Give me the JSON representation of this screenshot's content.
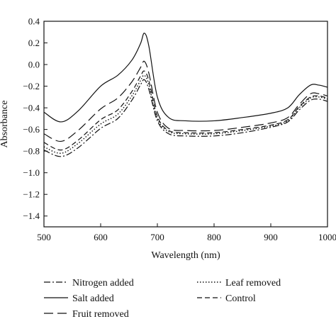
{
  "chart_data": {
    "type": "line",
    "xlabel": "Wavelength (nm)",
    "ylabel": "Absorbance",
    "xlim": [
      500,
      1000
    ],
    "ylim": [
      -1.5,
      0.4
    ],
    "xticks": [
      500,
      600,
      700,
      800,
      900,
      1000
    ],
    "xtick_labels": [
      "500",
      "600",
      "700",
      "800",
      "900",
      "1000"
    ],
    "yticks": [
      0.4,
      0.2,
      0.0,
      -0.2,
      -0.4,
      -0.6,
      -0.8,
      -1.0,
      -1.2,
      -1.4
    ],
    "ytick_labels": [
      "0.4",
      "0.2",
      "0.0",
      "−0.2",
      "−0.4",
      "−0.6",
      "−0.8",
      "−1.0",
      "−1.2",
      "−1.4"
    ],
    "grid": false,
    "legend_position": "bottom",
    "series": [
      {
        "name": "Nitrogen added",
        "style": "dash-dot",
        "x": [
          500,
          530,
          560,
          600,
          630,
          655,
          670,
          677,
          685,
          700,
          720,
          750,
          800,
          850,
          900,
          930,
          950,
          970,
          985,
          1000
        ],
        "y": [
          -0.79,
          -0.85,
          -0.77,
          -0.59,
          -0.5,
          -0.33,
          -0.19,
          -0.14,
          -0.23,
          -0.52,
          -0.64,
          -0.66,
          -0.66,
          -0.63,
          -0.58,
          -0.53,
          -0.42,
          -0.33,
          -0.32,
          -0.34
        ]
      },
      {
        "name": "Salt added",
        "style": "solid",
        "x": [
          500,
          530,
          560,
          600,
          630,
          655,
          670,
          677,
          685,
          700,
          720,
          750,
          800,
          850,
          900,
          930,
          950,
          970,
          985,
          1000
        ],
        "y": [
          -0.44,
          -0.53,
          -0.43,
          -0.2,
          -0.1,
          0.04,
          0.19,
          0.29,
          0.17,
          -0.3,
          -0.49,
          -0.52,
          -0.52,
          -0.49,
          -0.45,
          -0.4,
          -0.28,
          -0.19,
          -0.19,
          -0.21
        ]
      },
      {
        "name": "Fruit removed",
        "style": "long-dash",
        "x": [
          500,
          530,
          560,
          600,
          630,
          655,
          670,
          677,
          685,
          700,
          720,
          750,
          800,
          850,
          900,
          930,
          950,
          970,
          985,
          1000
        ],
        "y": [
          -0.64,
          -0.71,
          -0.61,
          -0.41,
          -0.31,
          -0.16,
          -0.03,
          0.03,
          -0.08,
          -0.44,
          -0.59,
          -0.61,
          -0.61,
          -0.58,
          -0.54,
          -0.49,
          -0.37,
          -0.27,
          -0.27,
          -0.29
        ]
      },
      {
        "name": "Leaf removed",
        "style": "dotted",
        "x": [
          500,
          530,
          560,
          600,
          630,
          655,
          670,
          677,
          685,
          700,
          720,
          750,
          800,
          850,
          900,
          930,
          950,
          970,
          985,
          1000
        ],
        "y": [
          -0.76,
          -0.82,
          -0.73,
          -0.55,
          -0.46,
          -0.29,
          -0.15,
          -0.1,
          -0.19,
          -0.5,
          -0.62,
          -0.64,
          -0.64,
          -0.61,
          -0.57,
          -0.52,
          -0.4,
          -0.31,
          -0.3,
          -0.32
        ]
      },
      {
        "name": "Control",
        "style": "dashed",
        "x": [
          500,
          530,
          560,
          600,
          630,
          655,
          670,
          677,
          685,
          700,
          720,
          750,
          800,
          850,
          900,
          930,
          950,
          970,
          985,
          1000
        ],
        "y": [
          -0.72,
          -0.79,
          -0.7,
          -0.51,
          -0.42,
          -0.25,
          -0.11,
          -0.06,
          -0.15,
          -0.48,
          -0.61,
          -0.63,
          -0.63,
          -0.6,
          -0.56,
          -0.51,
          -0.39,
          -0.3,
          -0.29,
          -0.31
        ]
      }
    ]
  }
}
